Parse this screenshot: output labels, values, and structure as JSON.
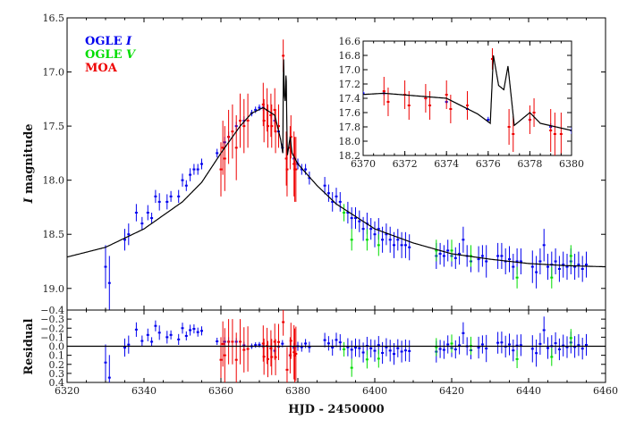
{
  "chart_data": [
    {
      "type": "scatter",
      "panel": "main",
      "xlabel": "HJD - 2450000",
      "ylabel": {
        "italic": "I",
        "rest": " magnitude"
      },
      "xlim": [
        6320,
        6460
      ],
      "ylim": [
        16.5,
        19.2
      ],
      "y_inverted": true,
      "xticks": [
        "6320",
        "6340",
        "6360",
        "6380",
        "6400",
        "6420",
        "6440",
        "6460"
      ],
      "yticks": [
        "16.5",
        "17.0",
        "17.5",
        "18.0",
        "18.5",
        "19.0"
      ],
      "legend_position": "top-left",
      "series": [
        {
          "name": "OGLE",
          "name_italic": "I",
          "color": "#0000ee",
          "t": [
            6330,
            6331,
            6335,
            6336,
            6338,
            6339.5,
            6341,
            6342,
            6343,
            6344,
            6346,
            6347,
            6349,
            6350,
            6351,
            6352,
            6353,
            6354,
            6355,
            6359,
            6361,
            6362,
            6364,
            6366,
            6368,
            6369,
            6370,
            6371,
            6373,
            6374,
            6375,
            6376,
            6378,
            6379,
            6380,
            6381,
            6382,
            6383,
            6387,
            6388,
            6389,
            6390,
            6391,
            6393,
            6394,
            6395,
            6396,
            6397,
            6398,
            6399,
            6400,
            6401,
            6402,
            6403,
            6404,
            6405,
            6406,
            6407,
            6408,
            6409,
            6416,
            6417,
            6418,
            6419,
            6420,
            6421,
            6422,
            6423,
            6424,
            6425,
            6427,
            6428,
            6429,
            6432,
            6433,
            6434,
            6435,
            6436,
            6437,
            6438,
            6441,
            6442,
            6443,
            6444,
            6445,
            6446,
            6447,
            6448,
            6449,
            6450,
            6451,
            6452,
            6453,
            6454,
            6455
          ],
          "mag": [
            18.8,
            18.95,
            18.55,
            18.5,
            18.3,
            18.4,
            18.3,
            18.35,
            18.15,
            18.2,
            18.2,
            18.15,
            18.15,
            18.0,
            18.05,
            17.95,
            17.9,
            17.9,
            17.85,
            17.75,
            17.65,
            17.6,
            17.5,
            17.45,
            17.38,
            17.35,
            17.33,
            17.33,
            17.4,
            17.45,
            17.55,
            17.7,
            17.7,
            17.8,
            17.85,
            17.9,
            17.9,
            17.98,
            18.05,
            18.12,
            18.2,
            18.15,
            18.2,
            18.3,
            18.35,
            18.35,
            18.38,
            18.45,
            18.4,
            18.45,
            18.5,
            18.45,
            18.55,
            18.5,
            18.55,
            18.6,
            18.55,
            18.6,
            18.6,
            18.62,
            18.7,
            18.68,
            18.7,
            18.65,
            18.7,
            18.72,
            18.68,
            18.55,
            18.7,
            18.75,
            18.73,
            18.7,
            18.75,
            18.7,
            18.7,
            18.75,
            18.73,
            18.8,
            18.75,
            18.75,
            18.8,
            18.85,
            18.75,
            18.6,
            18.8,
            18.78,
            18.75,
            18.82,
            18.78,
            18.8,
            18.75,
            18.8,
            18.78,
            18.82,
            18.78
          ],
          "err": [
            0.2,
            0.25,
            0.1,
            0.1,
            0.08,
            0.06,
            0.07,
            0.05,
            0.06,
            0.08,
            0.07,
            0.05,
            0.06,
            0.06,
            0.05,
            0.06,
            0.05,
            0.05,
            0.05,
            0.04,
            0.05,
            0.05,
            0.04,
            0.04,
            0.03,
            0.03,
            0.03,
            0.03,
            0.03,
            0.03,
            0.04,
            0.04,
            0.04,
            0.05,
            0.05,
            0.05,
            0.05,
            0.06,
            0.08,
            0.08,
            0.09,
            0.08,
            0.09,
            0.1,
            0.1,
            0.1,
            0.1,
            0.11,
            0.1,
            0.1,
            0.12,
            0.1,
            0.12,
            0.1,
            0.12,
            0.12,
            0.1,
            0.12,
            0.12,
            0.12,
            0.12,
            0.1,
            0.1,
            0.1,
            0.1,
            0.1,
            0.1,
            0.12,
            0.1,
            0.1,
            0.12,
            0.1,
            0.15,
            0.12,
            0.12,
            0.12,
            0.12,
            0.12,
            0.12,
            0.12,
            0.15,
            0.15,
            0.12,
            0.15,
            0.12,
            0.12,
            0.12,
            0.12,
            0.12,
            0.12,
            0.12,
            0.12,
            0.12,
            0.12,
            0.12
          ]
        },
        {
          "name": "OGLE",
          "name_italic": "V",
          "color": "#00dd00",
          "t": [
            6392,
            6394,
            6398,
            6401,
            6416,
            6420,
            6425,
            6437,
            6446,
            6451
          ],
          "mag": [
            18.3,
            18.55,
            18.55,
            18.6,
            18.65,
            18.65,
            18.7,
            18.9,
            18.9,
            18.7
          ],
          "err": [
            0.08,
            0.1,
            0.1,
            0.1,
            0.1,
            0.1,
            0.1,
            0.1,
            0.1,
            0.1
          ]
        },
        {
          "name": "MOA",
          "name_italic": "",
          "color": "#ee0000",
          "t": [
            6360,
            6360.5,
            6361,
            6362,
            6363,
            6364,
            6365,
            6366,
            6367,
            6371,
            6371.2,
            6372,
            6372.2,
            6373,
            6373.2,
            6374,
            6374.2,
            6375,
            6376.2,
            6377,
            6377.2,
            6378,
            6378.2,
            6379,
            6379.2,
            6379.5
          ],
          "mag": [
            17.9,
            17.7,
            17.8,
            17.6,
            17.55,
            17.7,
            17.45,
            17.5,
            17.45,
            17.3,
            17.45,
            17.35,
            17.5,
            17.4,
            17.5,
            17.35,
            17.55,
            17.5,
            16.85,
            17.8,
            17.9,
            17.7,
            17.6,
            17.85,
            17.9,
            17.9
          ],
          "err": [
            0.25,
            0.25,
            0.3,
            0.25,
            0.25,
            0.3,
            0.25,
            0.25,
            0.25,
            0.2,
            0.2,
            0.2,
            0.2,
            0.2,
            0.2,
            0.2,
            0.2,
            0.2,
            0.15,
            0.25,
            0.25,
            0.2,
            0.2,
            0.3,
            0.3,
            0.3
          ]
        }
      ],
      "model": {
        "color": "#000000",
        "t": [
          6320,
          6330,
          6340,
          6350,
          6355,
          6360,
          6365,
          6368,
          6371,
          6374,
          6375.5,
          6376.1,
          6376.25,
          6376.5,
          6376.75,
          6376.95,
          6377.15,
          6377.25,
          6378,
          6378.5,
          6380,
          6385,
          6390,
          6400,
          6410,
          6420,
          6430,
          6440,
          6450,
          6460
        ],
        "mag": [
          18.71,
          18.62,
          18.45,
          18.2,
          18.02,
          17.75,
          17.5,
          17.38,
          17.33,
          17.4,
          17.62,
          17.75,
          16.8,
          17.22,
          17.28,
          16.95,
          17.5,
          17.78,
          17.6,
          17.75,
          17.85,
          18.05,
          18.22,
          18.45,
          18.58,
          18.68,
          18.73,
          18.77,
          18.79,
          18.8
        ]
      }
    },
    {
      "type": "scatter",
      "panel": "residual",
      "ylabel": "Residual",
      "xlim": [
        6320,
        6460
      ],
      "ylim": [
        -0.4,
        0.4
      ],
      "yticks": [
        "-0.4",
        "-0.3",
        "-0.2",
        "-0.1",
        "0.0",
        "0.1",
        "0.2",
        "0.3",
        "0.4"
      ],
      "note_values": "residual = data mag - model mag"
    },
    {
      "type": "scatter",
      "panel": "inset",
      "xlim": [
        6370,
        6380
      ],
      "ylim": [
        16.6,
        18.2
      ],
      "y_inverted": true,
      "xticks": [
        "6370",
        "6372",
        "6374",
        "6376",
        "6378",
        "6380"
      ],
      "yticks": [
        "16.6",
        "16.8",
        "17.0",
        "17.2",
        "17.4",
        "17.6",
        "17.8",
        "18.0",
        "18.2"
      ]
    }
  ]
}
